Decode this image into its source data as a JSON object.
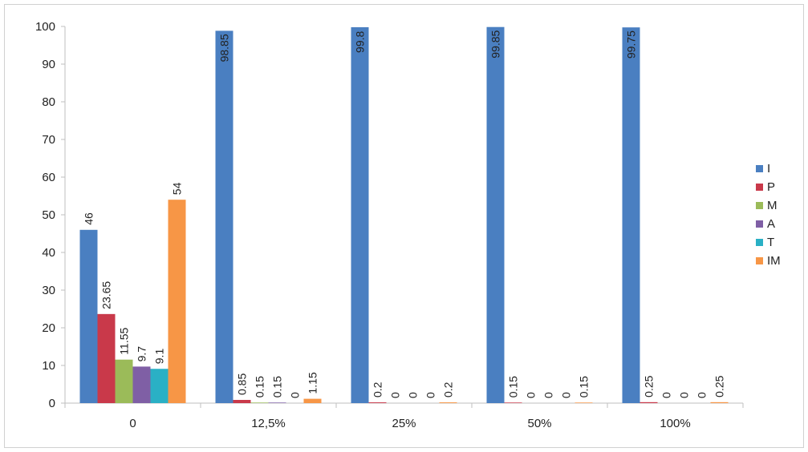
{
  "chart_data": {
    "type": "bar",
    "categories": [
      "0",
      "12,5%",
      "25%",
      "50%",
      "100%"
    ],
    "series": [
      {
        "name": "I",
        "color": "#4a7fc1",
        "values": [
          46,
          98.85,
          99.8,
          99.85,
          99.75
        ],
        "labels": [
          "46",
          "98.85",
          "99.8",
          "99.85",
          "99.75"
        ]
      },
      {
        "name": "P",
        "color": "#c9394a",
        "values": [
          23.65,
          0.85,
          0.2,
          0.15,
          0.25
        ],
        "labels": [
          "23.65",
          "0.85",
          "0.2",
          "0.15",
          "0.25"
        ]
      },
      {
        "name": "M",
        "color": "#9bbb59",
        "values": [
          11.55,
          0.15,
          0,
          0,
          0
        ],
        "labels": [
          "11.55",
          "0.15",
          "0",
          "0",
          "0"
        ]
      },
      {
        "name": "A",
        "color": "#7f5fa5",
        "values": [
          9.7,
          0.15,
          0,
          0,
          0
        ],
        "labels": [
          "9.7",
          "0.15",
          "0",
          "0",
          "0"
        ]
      },
      {
        "name": "T",
        "color": "#2ab0c5",
        "values": [
          9.1,
          0,
          0,
          0,
          0
        ],
        "labels": [
          "9.1",
          "0",
          "0",
          "0",
          "0"
        ]
      },
      {
        "name": "IM",
        "color": "#f79646",
        "values": [
          54,
          1.15,
          0.2,
          0.15,
          0.25
        ],
        "labels": [
          "54",
          "1.15",
          "0.2",
          "0.15",
          "0.25"
        ]
      }
    ],
    "ylim": [
      0,
      100
    ],
    "yticks": [
      "0",
      "10",
      "20",
      "30",
      "40",
      "50",
      "60",
      "70",
      "80",
      "90",
      "100"
    ],
    "grid": false,
    "legend_position": "right",
    "title": "",
    "xlabel": "",
    "ylabel": ""
  }
}
